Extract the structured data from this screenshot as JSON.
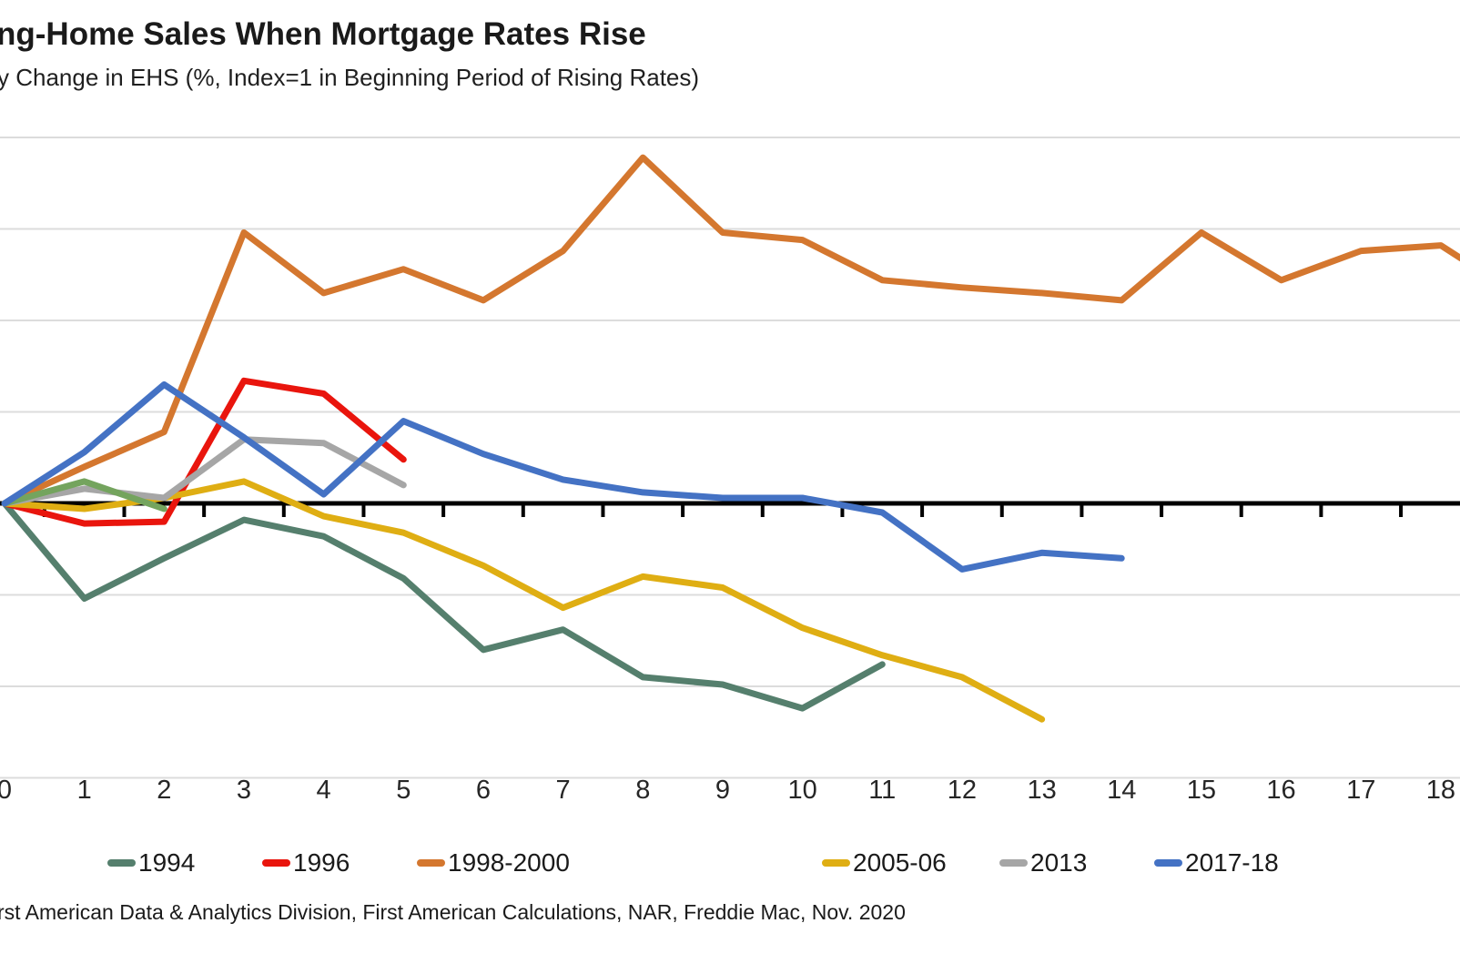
{
  "title": "ng-Home Sales When Mortgage Rates Rise",
  "subtitle": "y Change in EHS (%, Index=1 in Beginning Period of Rising Rates)",
  "source": "rst American Data & Analytics Division, First American Calculations, NAR, Freddie Mac, Nov. 2020",
  "chart_data": {
    "type": "line",
    "title": "ng-Home Sales When Mortgage Rates Rise",
    "subtitle": "y Change in EHS (%, Index=1 in Beginning Period of Rising Rates)",
    "xlabel": "",
    "ylabel": "",
    "x_tick_labels": [
      "0",
      "1",
      "2",
      "3",
      "4",
      "5",
      "6",
      "7",
      "8",
      "9",
      "10",
      "11",
      "12",
      "13",
      "14",
      "15",
      "16",
      "17",
      "18"
    ],
    "ylim": [
      0.85,
      1.205
    ],
    "zero_axis_value": 1.0,
    "gridline_values": [
      0.85,
      0.9,
      0.95,
      1.05,
      1.1,
      1.15,
      1.2
    ],
    "grid": true,
    "legend_position": "bottom",
    "axis_color": "#000000",
    "gridline_color": "#dcdcdc",
    "note": "Left edge of image is cropped: title, subtitle, source text and y-axis labels are cut off. A short unlabeled green line (periods 0-2) appears whose legend entry is not visible.",
    "series": [
      {
        "name": "1994",
        "color": "#557f6d",
        "in_legend": true,
        "x": [
          0,
          1,
          2,
          3,
          4,
          5,
          6,
          7,
          8,
          9,
          10,
          11
        ],
        "values": [
          1.0,
          0.948,
          0.97,
          0.991,
          0.982,
          0.959,
          0.92,
          0.931,
          0.905,
          0.901,
          0.888,
          0.912
        ]
      },
      {
        "name": "1996",
        "color": "#e9150d",
        "in_legend": true,
        "x": [
          0,
          1,
          2,
          3,
          4,
          5
        ],
        "values": [
          1.0,
          0.989,
          0.99,
          1.067,
          1.06,
          1.024
        ]
      },
      {
        "name": "1998-2000",
        "color": "#d4772f",
        "in_legend": true,
        "x": [
          0,
          1,
          2,
          3,
          4,
          5,
          6,
          7,
          8,
          9,
          10,
          11,
          12,
          13,
          14,
          15,
          16,
          17,
          18,
          18.25
        ],
        "values": [
          1.0,
          1.02,
          1.039,
          1.148,
          1.115,
          1.128,
          1.111,
          1.138,
          1.189,
          1.148,
          1.144,
          1.122,
          1.118,
          1.115,
          1.111,
          1.148,
          1.122,
          1.138,
          1.141,
          1.134
        ]
      },
      {
        "name": "2005-06",
        "color": "#dfae13",
        "in_legend": true,
        "x": [
          0,
          1,
          2,
          3,
          4,
          5,
          6,
          7,
          8,
          9,
          10,
          11,
          12,
          13
        ],
        "values": [
          1.0,
          0.997,
          1.003,
          1.012,
          0.993,
          0.984,
          0.966,
          0.943,
          0.96,
          0.954,
          0.932,
          0.917,
          0.905,
          0.882
        ]
      },
      {
        "name": "2013",
        "color": "#a6a6a6",
        "in_legend": true,
        "x": [
          0,
          1,
          2,
          3,
          4,
          5
        ],
        "values": [
          1.0,
          1.008,
          1.003,
          1.035,
          1.033,
          1.01
        ]
      },
      {
        "name": "",
        "color": "#74a45e",
        "in_legend": false,
        "x": [
          0,
          1,
          2
        ],
        "values": [
          1.0,
          1.012,
          0.997
        ]
      },
      {
        "name": "2017-18",
        "color": "#4472c4",
        "in_legend": true,
        "x": [
          0,
          1,
          2,
          3,
          4,
          5,
          6,
          7,
          8,
          9,
          10,
          11,
          12,
          13,
          14
        ],
        "values": [
          1.0,
          1.028,
          1.065,
          1.036,
          1.005,
          1.045,
          1.027,
          1.013,
          1.006,
          1.003,
          1.003,
          0.995,
          0.964,
          0.973,
          0.97
        ]
      }
    ]
  }
}
